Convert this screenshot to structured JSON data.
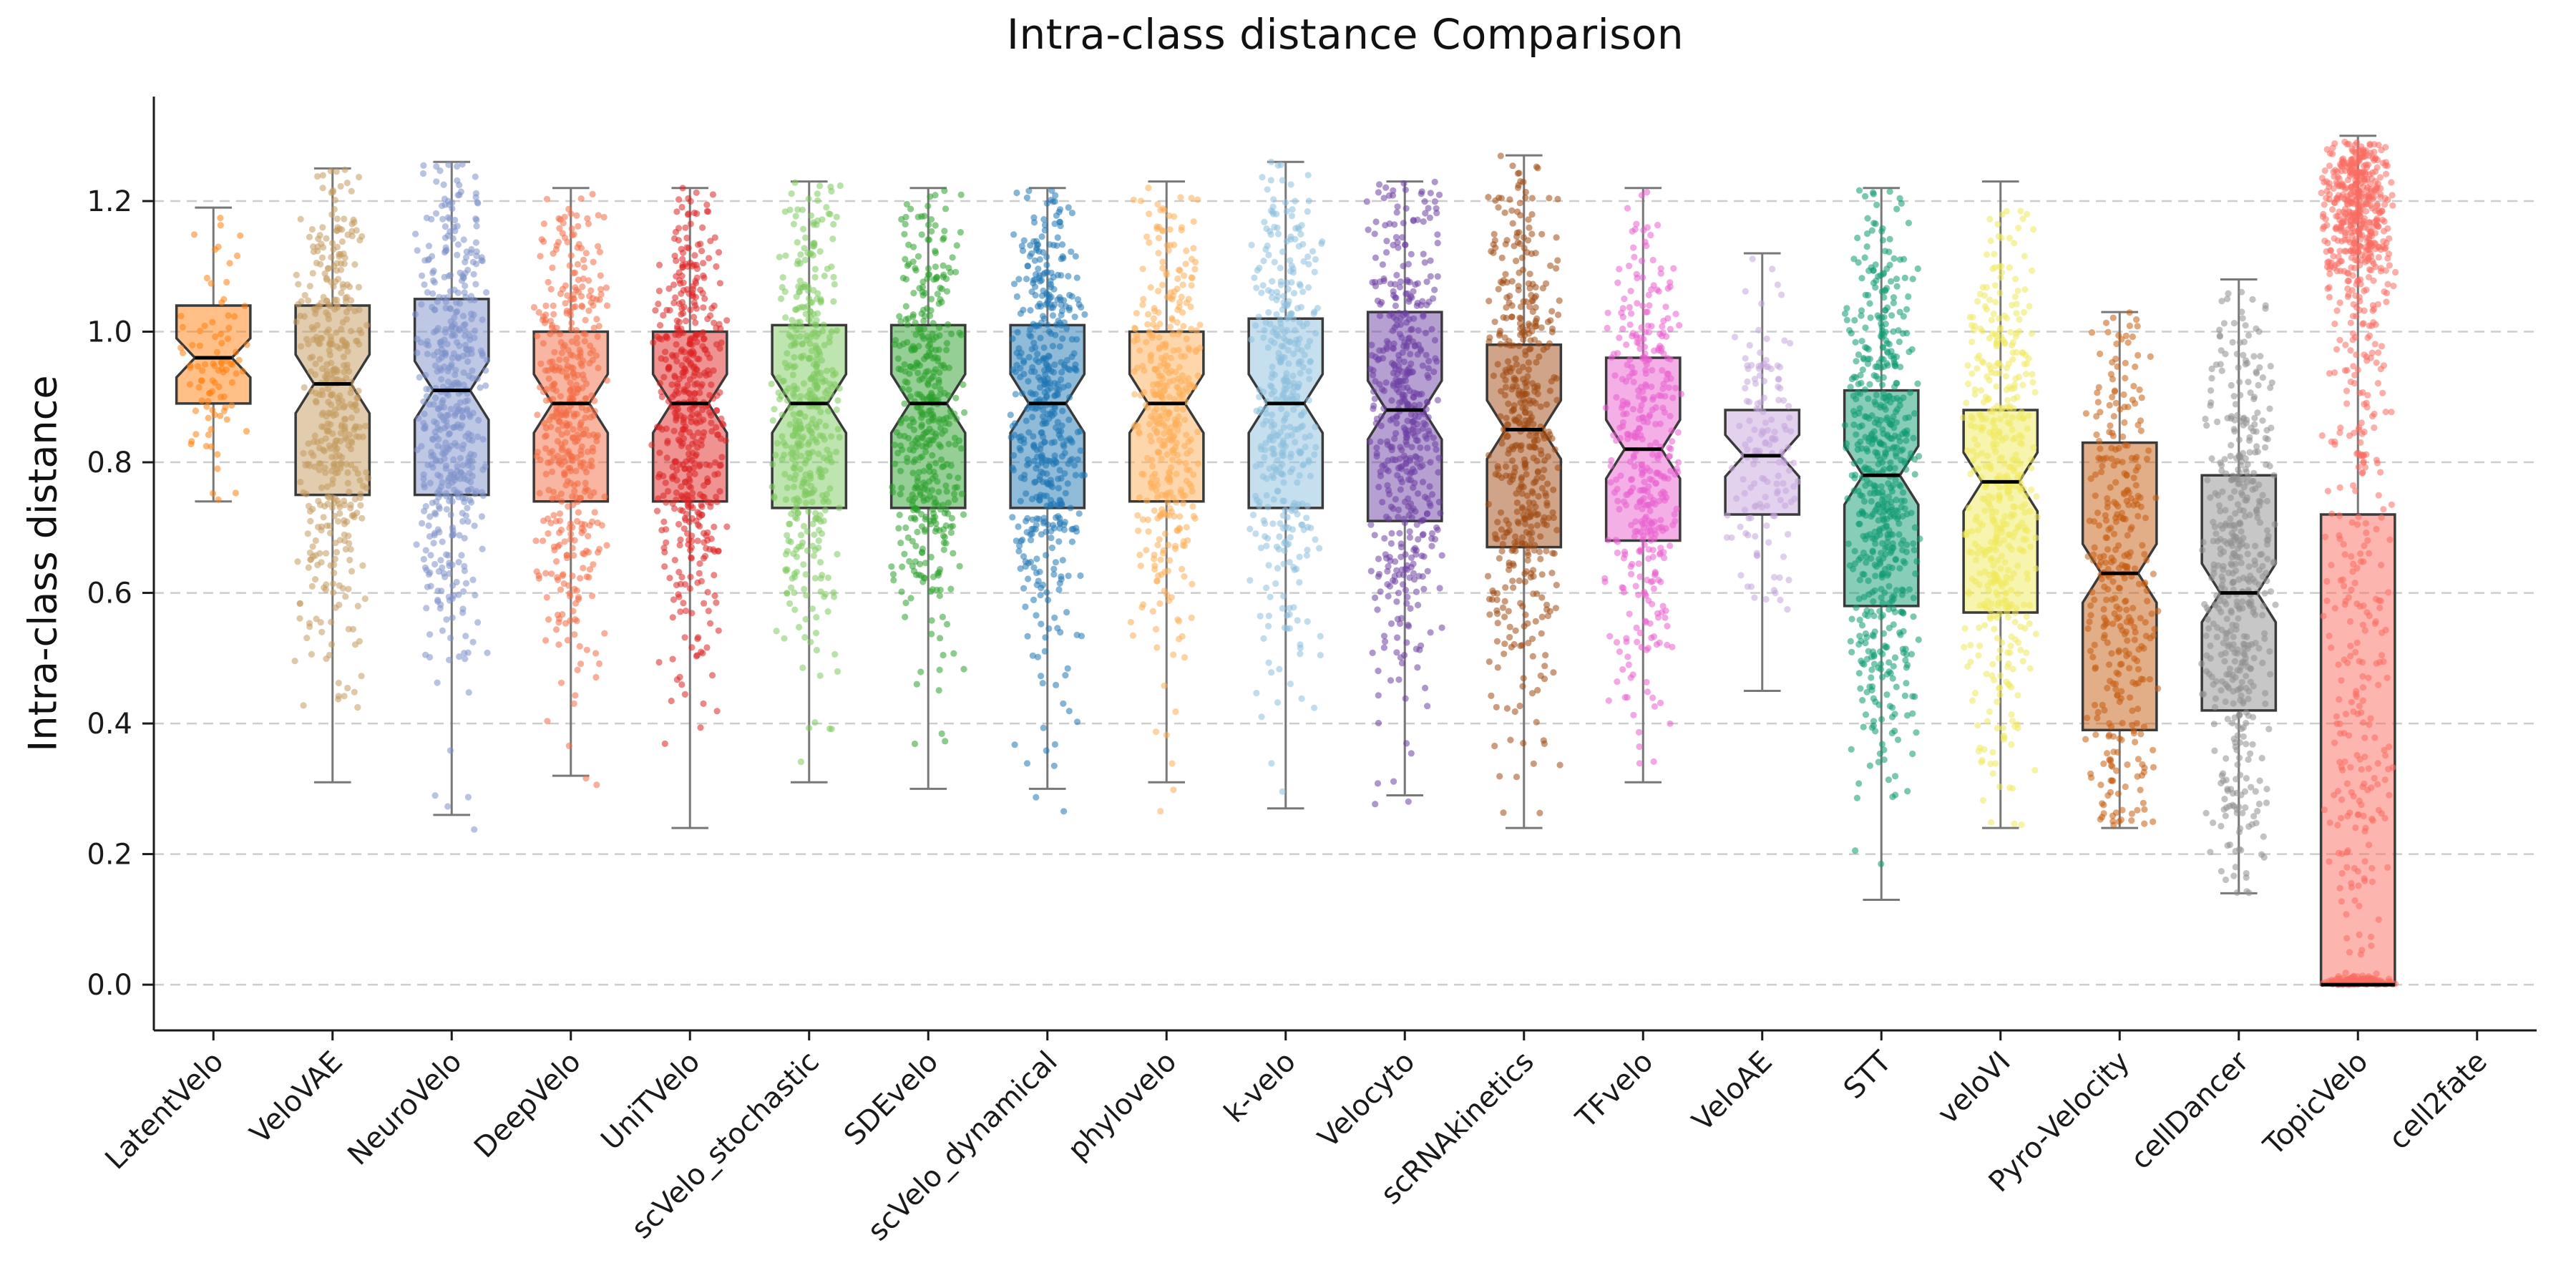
{
  "chart_data": {
    "type": "box",
    "title": "Intra-class distance Comparison",
    "ylabel": "Intra-class distance",
    "xlabel": "",
    "grid": "horizontal-dashed",
    "legend": "none",
    "ylim": [
      -0.07,
      1.36
    ],
    "yticks": [
      0.0,
      0.2,
      0.4,
      0.6,
      0.8,
      1.0,
      1.2
    ],
    "ytick_labels": [
      "0.0",
      "0.2",
      "0.4",
      "0.6",
      "0.8",
      "1.0",
      "1.2"
    ],
    "categories": [
      "LatentVelo",
      "VeloVAE",
      "NeuroVelo",
      "DeepVelo",
      "UniTVelo",
      "scVelo_stochastic",
      "SDEvelo",
      "scVelo_dynamical",
      "phylovelo",
      "k-velo",
      "Velocyto",
      "scRNAkinetics",
      "TFvelo",
      "VeloAE",
      "STT",
      "veloVI",
      "Pyro-Velocity",
      "cellDancer",
      "TopicVelo",
      "cell2fate"
    ],
    "series": [
      {
        "name": "LatentVelo",
        "color": "#ff7f0e",
        "median": 0.96,
        "q1": 0.89,
        "q3": 1.04,
        "whisker_low": 0.74,
        "whisker_high": 1.19,
        "notch": true,
        "points": {
          "n": 90,
          "min": 0.74,
          "max": 1.19,
          "clusters": [
            {
              "center": 0.96,
              "spread": 0.11,
              "weight": 1
            }
          ]
        }
      },
      {
        "name": "VeloVAE",
        "color": "#c49a5e",
        "median": 0.92,
        "q1": 0.75,
        "q3": 1.04,
        "whisker_low": 0.31,
        "whisker_high": 1.25,
        "notch": true,
        "points": {
          "n": 450,
          "min": 0.31,
          "max": 1.25,
          "clusters": [
            {
              "center": 0.92,
              "spread": 0.21,
              "weight": 1
            }
          ]
        }
      },
      {
        "name": "NeuroVelo",
        "color": "#7e91cb",
        "median": 0.91,
        "q1": 0.75,
        "q3": 1.05,
        "whisker_low": 0.26,
        "whisker_high": 1.26,
        "notch": true,
        "points": {
          "n": 500,
          "min": 0.18,
          "max": 1.26,
          "clusters": [
            {
              "center": 0.91,
              "spread": 0.22,
              "weight": 1
            }
          ]
        }
      },
      {
        "name": "DeepVelo",
        "color": "#f26b44",
        "median": 0.89,
        "q1": 0.74,
        "q3": 1.0,
        "whisker_low": 0.32,
        "whisker_high": 1.22,
        "notch": true,
        "points": {
          "n": 450,
          "min": 0.26,
          "max": 1.22,
          "clusters": [
            {
              "center": 0.89,
              "spread": 0.19,
              "weight": 1
            }
          ]
        }
      },
      {
        "name": "UniTVelo",
        "color": "#dd2525",
        "median": 0.89,
        "q1": 0.74,
        "q3": 1.0,
        "whisker_low": 0.24,
        "whisker_high": 1.22,
        "notch": true,
        "points": {
          "n": 500,
          "min": 0.24,
          "max": 1.22,
          "clusters": [
            {
              "center": 0.89,
              "spread": 0.19,
              "weight": 1
            }
          ]
        }
      },
      {
        "name": "scVelo_stochastic",
        "color": "#7ecb5f",
        "median": 0.89,
        "q1": 0.73,
        "q3": 1.01,
        "whisker_low": 0.31,
        "whisker_high": 1.23,
        "notch": true,
        "points": {
          "n": 450,
          "min": 0.31,
          "max": 1.23,
          "clusters": [
            {
              "center": 0.89,
              "spread": 0.2,
              "weight": 1
            }
          ]
        }
      },
      {
        "name": "SDEvelo",
        "color": "#2ca02c",
        "median": 0.89,
        "q1": 0.73,
        "q3": 1.01,
        "whisker_low": 0.3,
        "whisker_high": 1.22,
        "notch": true,
        "points": {
          "n": 450,
          "min": 0.3,
          "max": 1.22,
          "clusters": [
            {
              "center": 0.89,
              "spread": 0.2,
              "weight": 1
            }
          ]
        }
      },
      {
        "name": "scVelo_dynamical",
        "color": "#1f77b4",
        "median": 0.89,
        "q1": 0.73,
        "q3": 1.01,
        "whisker_low": 0.3,
        "whisker_high": 1.22,
        "notch": true,
        "points": {
          "n": 500,
          "min": 0.24,
          "max": 1.22,
          "clusters": [
            {
              "center": 0.89,
              "spread": 0.2,
              "weight": 1
            }
          ]
        }
      },
      {
        "name": "phylovelo",
        "color": "#fdae58",
        "median": 0.89,
        "q1": 0.74,
        "q3": 1.0,
        "whisker_low": 0.31,
        "whisker_high": 1.23,
        "notch": true,
        "points": {
          "n": 400,
          "min": 0.23,
          "max": 1.23,
          "clusters": [
            {
              "center": 0.89,
              "spread": 0.19,
              "weight": 1
            }
          ]
        }
      },
      {
        "name": "k-velo",
        "color": "#8dc0de",
        "median": 0.89,
        "q1": 0.73,
        "q3": 1.02,
        "whisker_low": 0.27,
        "whisker_high": 1.26,
        "notch": true,
        "points": {
          "n": 400,
          "min": 0.27,
          "max": 1.26,
          "clusters": [
            {
              "center": 0.89,
              "spread": 0.21,
              "weight": 1
            }
          ]
        }
      },
      {
        "name": "Velocyto",
        "color": "#6d3fa4",
        "median": 0.88,
        "q1": 0.71,
        "q3": 1.03,
        "whisker_low": 0.29,
        "whisker_high": 1.23,
        "notch": true,
        "points": {
          "n": 500,
          "min": 0.22,
          "max": 1.23,
          "clusters": [
            {
              "center": 0.88,
              "spread": 0.23,
              "weight": 1
            }
          ]
        }
      },
      {
        "name": "scRNAkinetics",
        "color": "#a04a12",
        "median": 0.85,
        "q1": 0.67,
        "q3": 0.98,
        "whisker_low": 0.24,
        "whisker_high": 1.27,
        "notch": true,
        "points": {
          "n": 500,
          "min": 0.24,
          "max": 1.27,
          "clusters": [
            {
              "center": 0.85,
              "spread": 0.22,
              "weight": 1
            }
          ]
        }
      },
      {
        "name": "TFvelo",
        "color": "#e95fcf",
        "median": 0.82,
        "q1": 0.68,
        "q3": 0.96,
        "whisker_low": 0.31,
        "whisker_high": 1.22,
        "notch": true,
        "points": {
          "n": 400,
          "min": 0.31,
          "max": 1.22,
          "clusters": [
            {
              "center": 0.82,
              "spread": 0.2,
              "weight": 1
            }
          ]
        }
      },
      {
        "name": "VeloAE",
        "color": "#c5a6dd",
        "median": 0.81,
        "q1": 0.72,
        "q3": 0.88,
        "whisker_low": 0.45,
        "whisker_high": 1.12,
        "notch": true,
        "points": {
          "n": 150,
          "min": 0.45,
          "max": 1.12,
          "clusters": [
            {
              "center": 0.81,
              "spread": 0.12,
              "weight": 1
            }
          ]
        }
      },
      {
        "name": "STT",
        "color": "#0f9b72",
        "median": 0.78,
        "q1": 0.58,
        "q3": 0.91,
        "whisker_low": 0.13,
        "whisker_high": 1.22,
        "notch": true,
        "points": {
          "n": 600,
          "min": 0.13,
          "max": 1.22,
          "clusters": [
            {
              "center": 0.78,
              "spread": 0.24,
              "weight": 1
            }
          ]
        }
      },
      {
        "name": "veloVI",
        "color": "#f0e95c",
        "median": 0.77,
        "q1": 0.57,
        "q3": 0.88,
        "whisker_low": 0.24,
        "whisker_high": 1.23,
        "notch": true,
        "points": {
          "n": 500,
          "min": 0.24,
          "max": 1.23,
          "clusters": [
            {
              "center": 0.77,
              "spread": 0.22,
              "weight": 1
            }
          ]
        }
      },
      {
        "name": "Pyro-Velocity",
        "color": "#c65d11",
        "median": 0.63,
        "q1": 0.39,
        "q3": 0.83,
        "whisker_low": 0.24,
        "whisker_high": 1.03,
        "notch": true,
        "points": {
          "n": 350,
          "min": 0.24,
          "max": 1.03,
          "clusters": [
            {
              "center": 0.63,
              "spread": 0.28,
              "weight": 1
            }
          ]
        }
      },
      {
        "name": "cellDancer",
        "color": "#909090",
        "median": 0.6,
        "q1": 0.42,
        "q3": 0.78,
        "whisker_low": 0.14,
        "whisker_high": 1.08,
        "notch": true,
        "points": {
          "n": 500,
          "min": 0.14,
          "max": 1.08,
          "clusters": [
            {
              "center": 0.6,
              "spread": 0.24,
              "weight": 1
            }
          ]
        }
      },
      {
        "name": "TopicVelo",
        "color": "#fa6b60",
        "median": 0.0,
        "q1": 0.0,
        "q3": 0.72,
        "whisker_low": 0.0,
        "whisker_high": 1.3,
        "notch": false,
        "points": {
          "n": 900,
          "min": 0.0,
          "max": 1.295,
          "clusters": [
            {
              "center": 1.19,
              "spread": 0.07,
              "weight": 0.5
            },
            {
              "center": 0.85,
              "spread": 0.25,
              "weight": 0.2
            },
            {
              "center": 0.3,
              "spread": 0.2,
              "weight": 0.12
            },
            {
              "center": 0.0,
              "spread": 0.006,
              "weight": 0.18
            }
          ]
        }
      },
      {
        "name": "cell2fate",
        "color": "#b0b0b0",
        "empty": true,
        "median": null,
        "q1": null,
        "q3": null,
        "whisker_low": null,
        "whisker_high": null,
        "notch": false,
        "points": {
          "n": 0,
          "min": 0,
          "max": 0,
          "clusters": []
        }
      }
    ]
  }
}
